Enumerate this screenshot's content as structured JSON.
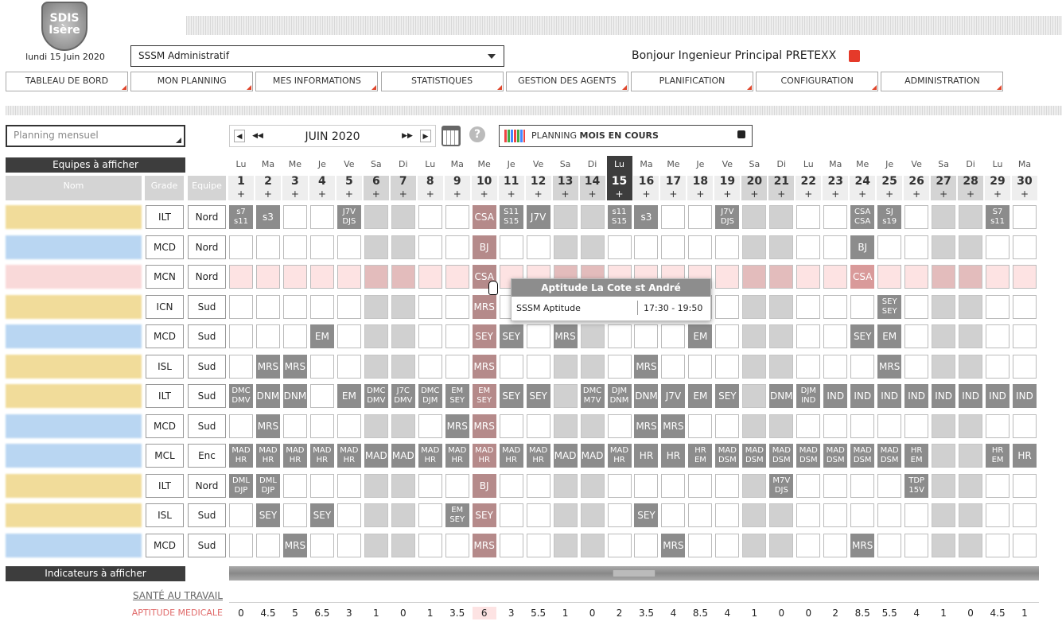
{
  "header": {
    "logo": [
      "SDIS",
      "Isère"
    ],
    "date": "lundi 15 Juin 2020",
    "service": "SSSM Administratif",
    "greeting": "Bonjour Ingenieur Principal PRETEXX"
  },
  "nav": [
    "TABLEAU DE BORD",
    "MON PLANNING",
    "MES INFORMATIONS",
    "STATISTIQUES",
    "GESTION DES AGENTS",
    "PLANIFICATION",
    "CONFIGURATION",
    "ADMINISTRATION"
  ],
  "toolbar": {
    "view": "Planning mensuel",
    "month": "JUIN 2020",
    "planning": "PLANNING",
    "planning_mode": "MOIS EN COURS"
  },
  "grid": {
    "teams_header": "Equipes à afficher",
    "columns": [
      "Nom",
      "Grade",
      "Equipe"
    ],
    "weekdays": [
      "Lu",
      "Ma",
      "Me",
      "Je",
      "Ve",
      "Sa",
      "Di",
      "Lu",
      "Ma",
      "Me",
      "Je",
      "Ve",
      "Sa",
      "Di",
      "Lu",
      "Ma",
      "Me",
      "Je",
      "Ve",
      "Sa",
      "Di",
      "Lu",
      "Ma",
      "Me",
      "Je",
      "Ve",
      "Sa",
      "Di",
      "Lu",
      "Ma"
    ],
    "days": [
      1,
      2,
      3,
      4,
      5,
      6,
      7,
      8,
      9,
      10,
      11,
      12,
      13,
      14,
      15,
      16,
      17,
      18,
      19,
      20,
      21,
      22,
      23,
      24,
      25,
      26,
      27,
      28,
      29,
      30
    ],
    "add": "+",
    "today": 15,
    "selected": 10,
    "weekends": [
      6,
      7,
      13,
      14,
      20,
      21,
      27,
      28
    ],
    "rows": [
      {
        "grade": "ILT",
        "team": "Nord",
        "color": "#f1dc9a",
        "cells": [
          [
            "s7",
            "s11"
          ],
          "s3",
          null,
          null,
          [
            "J7V",
            "DJS"
          ],
          null,
          null,
          null,
          null,
          "CSA",
          [
            "S11",
            "S15"
          ],
          "J7V",
          null,
          null,
          [
            "s11",
            "S15"
          ],
          "s3",
          null,
          null,
          [
            "J7V",
            "DJS"
          ],
          null,
          null,
          null,
          null,
          [
            "CSA",
            "CSA"
          ],
          [
            "SJ",
            "s19"
          ],
          null,
          null,
          null,
          [
            "S7",
            "s11"
          ],
          null
        ]
      },
      {
        "grade": "MCD",
        "team": "Nord",
        "color": "#b9d6f2",
        "cells": [
          null,
          null,
          null,
          null,
          null,
          null,
          null,
          null,
          null,
          "BJ",
          null,
          null,
          null,
          null,
          null,
          null,
          null,
          null,
          null,
          null,
          null,
          null,
          null,
          "BJ",
          null,
          null,
          null,
          null,
          null,
          null
        ]
      },
      {
        "grade": "MCN",
        "team": "Nord",
        "color": "#f9d9d9",
        "cell_color": "#fde3e3",
        "cells": [
          null,
          null,
          null,
          null,
          null,
          null,
          null,
          null,
          null,
          "CSA",
          null,
          null,
          null,
          null,
          null,
          null,
          null,
          null,
          null,
          null,
          null,
          null,
          null,
          "CSA",
          null,
          null,
          null,
          null,
          null,
          null
        ]
      },
      {
        "grade": "ICN",
        "team": "Sud",
        "color": "#f1dc9a",
        "cells": [
          null,
          null,
          null,
          null,
          null,
          null,
          null,
          null,
          null,
          "MRS",
          null,
          null,
          null,
          null,
          null,
          null,
          null,
          null,
          null,
          null,
          null,
          null,
          null,
          null,
          [
            "SEY",
            "SEY"
          ],
          null,
          null,
          null,
          null,
          null
        ]
      },
      {
        "grade": "MCD",
        "team": "Sud",
        "color": "#b9d6f2",
        "cells": [
          null,
          null,
          null,
          "EM",
          null,
          null,
          null,
          null,
          null,
          "SEY",
          "SEY",
          null,
          "MRS",
          null,
          null,
          null,
          null,
          "EM",
          null,
          null,
          null,
          null,
          null,
          "SEY",
          "EM",
          null,
          null,
          null,
          null,
          null
        ]
      },
      {
        "grade": "ISL",
        "team": "Sud",
        "color": "#f1dc9a",
        "cells": [
          null,
          "MRS",
          "MRS",
          null,
          null,
          null,
          null,
          null,
          null,
          "MRS",
          null,
          null,
          null,
          null,
          null,
          "MRS",
          null,
          null,
          null,
          null,
          null,
          null,
          null,
          null,
          "MRS",
          null,
          null,
          null,
          null,
          null
        ]
      },
      {
        "grade": "ILT",
        "team": "Sud",
        "color": "#f1dc9a",
        "cells": [
          [
            "DMC",
            "DMV"
          ],
          "DNM",
          "DNM",
          null,
          "EM",
          [
            "DMC",
            "DMV"
          ],
          [
            "J7C",
            "DMV"
          ],
          [
            "DMC",
            "DJM"
          ],
          [
            "EM",
            "SEY"
          ],
          [
            "EM",
            "SEY"
          ],
          "SEY",
          "SEY",
          null,
          [
            "DMC",
            "M7V"
          ],
          [
            "DJM",
            "DNM"
          ],
          "DNM",
          "J7V",
          "EM",
          "SEY",
          null,
          "DNM",
          [
            "DJM",
            "IND"
          ],
          "IND",
          "IND",
          "IND",
          "IND",
          "IND",
          "IND",
          "IND",
          "IND"
        ]
      },
      {
        "grade": "MCD",
        "team": "Sud",
        "color": "#b9d6f2",
        "cells": [
          null,
          "MRS",
          null,
          null,
          null,
          null,
          null,
          null,
          "MRS",
          "MRS",
          null,
          null,
          null,
          null,
          null,
          "MRS",
          "MRS",
          null,
          null,
          null,
          null,
          null,
          null,
          null,
          null,
          null,
          null,
          null,
          null,
          null
        ]
      },
      {
        "grade": "MCL",
        "team": "Enc",
        "color": "#b9d6f2",
        "cells": [
          [
            "MAD",
            "HR"
          ],
          [
            "MAD",
            "HR"
          ],
          [
            "MAD",
            "HR"
          ],
          [
            "MAD",
            "HR"
          ],
          [
            "MAD",
            "HR"
          ],
          "MAD",
          "MAD",
          [
            "MAD",
            "HR"
          ],
          [
            "MAD",
            "HR"
          ],
          [
            "MAD",
            "HR"
          ],
          [
            "MAD",
            "HR"
          ],
          [
            "MAD",
            "HR"
          ],
          "MAD",
          "MAD",
          [
            "MAD",
            "HR"
          ],
          "HR",
          "HR",
          [
            "HR",
            "EM"
          ],
          [
            "MAD",
            "DSM"
          ],
          [
            "MAD",
            "DSM"
          ],
          [
            "MAD",
            "DSM"
          ],
          [
            "MAD",
            "DSM"
          ],
          [
            "MAD",
            "DSM"
          ],
          [
            "MAD",
            "DSM"
          ],
          [
            "MAD",
            "DSM"
          ],
          [
            "HR",
            "EM"
          ],
          null,
          null,
          [
            "HR",
            "EM"
          ],
          "HR"
        ]
      },
      {
        "grade": "ILT",
        "team": "Nord",
        "color": "#f1dc9a",
        "cells": [
          [
            "DML",
            "DJP"
          ],
          [
            "DML",
            "DJP"
          ],
          null,
          null,
          null,
          null,
          null,
          null,
          null,
          "BJ",
          null,
          null,
          null,
          null,
          null,
          null,
          null,
          null,
          null,
          null,
          [
            "M7V",
            "DJS"
          ],
          null,
          null,
          null,
          null,
          [
            "TDP",
            "15V"
          ],
          null,
          null,
          null,
          null
        ]
      },
      {
        "grade": "ISL",
        "team": "Sud",
        "color": "#f1dc9a",
        "cells": [
          null,
          "SEY",
          null,
          "SEY",
          null,
          null,
          null,
          null,
          [
            "EM",
            "SEY"
          ],
          "SEY",
          null,
          null,
          null,
          null,
          null,
          "SEY",
          null,
          null,
          null,
          null,
          null,
          null,
          null,
          null,
          null,
          null,
          null,
          null,
          null,
          null
        ]
      },
      {
        "grade": "MCD",
        "team": "Sud",
        "color": "#b9d6f2",
        "cells": [
          null,
          null,
          "MRS",
          null,
          null,
          null,
          null,
          null,
          null,
          "MRS",
          null,
          null,
          null,
          null,
          null,
          null,
          "MRS",
          null,
          null,
          null,
          null,
          null,
          null,
          "MRS",
          null,
          null,
          null,
          null,
          null,
          null
        ]
      }
    ]
  },
  "tooltip": {
    "title": "Aptitude La Cote st André",
    "label": "SSSM Aptitude",
    "time": "17:30 - 19:50"
  },
  "indicators": {
    "header": "Indicateurs à afficher",
    "group": "SANTÉ AU TRAVAIL",
    "label": "APTITUDE MEDICALE",
    "values": [
      0,
      4.5,
      5,
      6.5,
      3,
      1,
      0,
      1,
      3.5,
      6,
      3,
      5.5,
      1,
      0,
      2,
      3.5,
      4,
      8.5,
      4,
      1,
      0,
      0,
      2,
      8.5,
      5.5,
      4,
      1,
      0,
      4.5,
      1
    ]
  }
}
